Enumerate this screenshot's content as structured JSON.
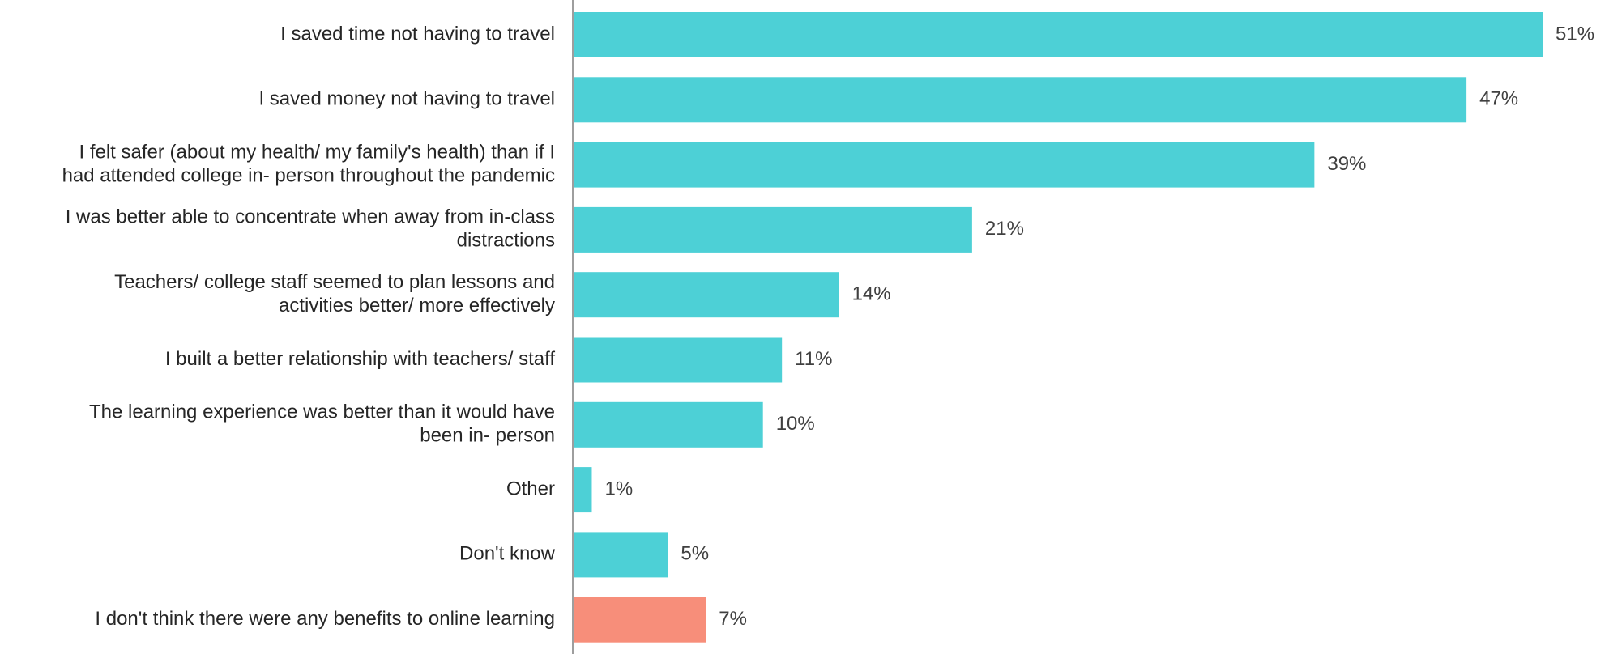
{
  "chart_data": {
    "type": "bar",
    "orientation": "horizontal",
    "categories": [
      "I saved time not having to travel",
      "I saved money not having to travel",
      "I felt safer (about my health/ my family's health) than if I had attended college in- person throughout the pandemic",
      "I was better able to concentrate when away from in-class distractions",
      "Teachers/ college staff seemed to plan lessons and activities better/ more effectively",
      "I built a better relationship with teachers/ staff",
      "The learning experience was better than it would have been in- person",
      "Other",
      "Don't know",
      "I don't think there were any benefits to online learning"
    ],
    "category_label_lines": [
      [
        "I saved time not having to travel"
      ],
      [
        "I saved money not having to travel"
      ],
      [
        "I felt safer (about my health/ my family's health) than if I",
        "had attended college in- person throughout the pandemic"
      ],
      [
        "I was better able to concentrate when away from in-class",
        "distractions"
      ],
      [
        "Teachers/ college staff seemed to plan lessons and",
        "activities better/ more effectively"
      ],
      [
        "I built a better relationship with teachers/ staff"
      ],
      [
        "The learning experience was better than it would have",
        "been in- person"
      ],
      [
        "Other"
      ],
      [
        "Don't know"
      ],
      [
        "I don't think there were any benefits to online learning"
      ]
    ],
    "values": [
      51,
      47,
      39,
      21,
      14,
      11,
      10,
      1,
      5,
      7
    ],
    "value_labels": [
      "51%",
      "47%",
      "39%",
      "21%",
      "14%",
      "11%",
      "10%",
      "1%",
      "5%",
      "7%"
    ],
    "bar_colors": [
      "#4dd0d6",
      "#4dd0d6",
      "#4dd0d6",
      "#4dd0d6",
      "#4dd0d6",
      "#4dd0d6",
      "#4dd0d6",
      "#4dd0d6",
      "#4dd0d6",
      "#f78e7a"
    ],
    "axis_color": "#9e9e9e",
    "xlim": [
      0,
      51
    ],
    "grid": false,
    "legend": "none",
    "title": "",
    "xlabel": "",
    "ylabel": ""
  }
}
